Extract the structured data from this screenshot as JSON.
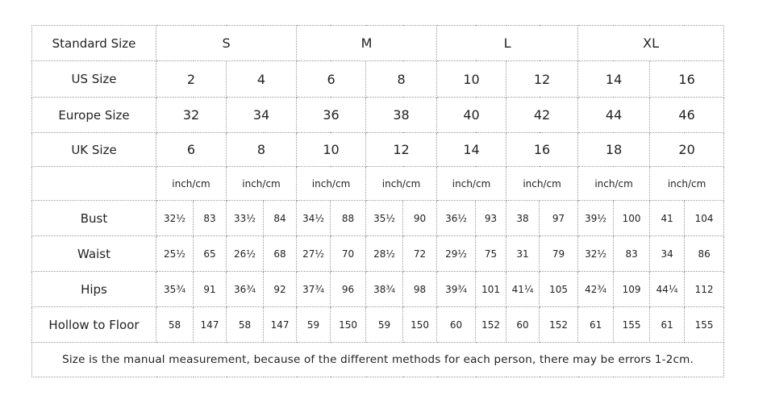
{
  "size_chart": {
    "standard_size": {
      "label": "Standard Size",
      "values": [
        "S",
        "M",
        "L",
        "XL"
      ]
    },
    "us_size": {
      "label": "US Size",
      "values": [
        "2",
        "4",
        "6",
        "8",
        "10",
        "12",
        "14",
        "16"
      ]
    },
    "europe_size": {
      "label": "Europe Size",
      "values": [
        "32",
        "34",
        "36",
        "38",
        "40",
        "42",
        "44",
        "46"
      ]
    },
    "uk_size": {
      "label": "UK Size",
      "values": [
        "6",
        "8",
        "10",
        "12",
        "14",
        "16",
        "18",
        "20"
      ]
    },
    "unit_label": "inch/cm",
    "measurements": [
      {
        "label": "Bust",
        "values": [
          "32½",
          "83",
          "33½",
          "84",
          "34½",
          "88",
          "35½",
          "90",
          "36½",
          "93",
          "38",
          "97",
          "39½",
          "100",
          "41",
          "104"
        ]
      },
      {
        "label": "Waist",
        "values": [
          "25½",
          "65",
          "26½",
          "68",
          "27½",
          "70",
          "28½",
          "72",
          "29½",
          "75",
          "31",
          "79",
          "32½",
          "83",
          "34",
          "86"
        ]
      },
      {
        "label": "Hips",
        "values": [
          "35¾",
          "91",
          "36¾",
          "92",
          "37¾",
          "96",
          "38¾",
          "98",
          "39¾",
          "101",
          "41¼",
          "105",
          "42¾",
          "109",
          "44¼",
          "112"
        ]
      },
      {
        "label": "Hollow to Floor",
        "values": [
          "58",
          "147",
          "58",
          "147",
          "59",
          "150",
          "59",
          "150",
          "60",
          "152",
          "60",
          "152",
          "61",
          "155",
          "61",
          "155"
        ]
      }
    ],
    "note": "Size is the manual measurement, because of the different methods for each person, there may be errors 1-2cm."
  }
}
